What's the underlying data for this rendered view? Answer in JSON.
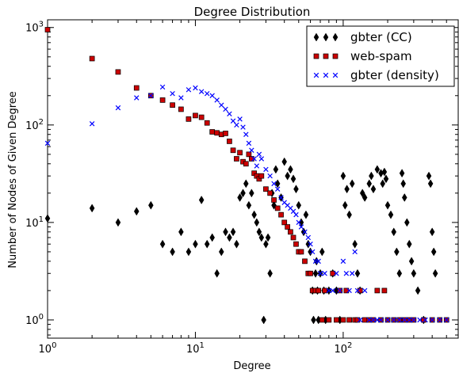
{
  "chart_data": {
    "type": "scatter",
    "title": "Degree Distribution",
    "xlabel": "Degree",
    "ylabel": "Number of Nodes of Given Degree",
    "xscale": "log",
    "yscale": "log",
    "xlim": [
      1,
      600
    ],
    "ylim": [
      0.65,
      1200
    ],
    "grid": false,
    "legend_position": "top-right",
    "x_ticks": [
      {
        "value": 1,
        "base": "10",
        "exp": "0"
      },
      {
        "value": 10,
        "base": "10",
        "exp": "1"
      },
      {
        "value": 100,
        "base": "10",
        "exp": "2"
      }
    ],
    "y_ticks": [
      {
        "value": 1,
        "base": "10",
        "exp": "0"
      },
      {
        "value": 10,
        "base": "10",
        "exp": "1"
      },
      {
        "value": 100,
        "base": "10",
        "exp": "2"
      },
      {
        "value": 1000,
        "base": "10",
        "exp": "3"
      }
    ],
    "series": [
      {
        "name": "gbter (CC)",
        "marker": "diamond",
        "color": "#000000",
        "points": [
          [
            1,
            11
          ],
          [
            2,
            14
          ],
          [
            3,
            10
          ],
          [
            4,
            13
          ],
          [
            5,
            15
          ],
          [
            6,
            6
          ],
          [
            7,
            5
          ],
          [
            8,
            8
          ],
          [
            9,
            5
          ],
          [
            10,
            6
          ],
          [
            11,
            17
          ],
          [
            12,
            6
          ],
          [
            13,
            7
          ],
          [
            14,
            3
          ],
          [
            15,
            5
          ],
          [
            16,
            8
          ],
          [
            17,
            7
          ],
          [
            18,
            8
          ],
          [
            19,
            6
          ],
          [
            20,
            18
          ],
          [
            21,
            20
          ],
          [
            22,
            25
          ],
          [
            23,
            15
          ],
          [
            24,
            20
          ],
          [
            25,
            12
          ],
          [
            26,
            10
          ],
          [
            27,
            8
          ],
          [
            28,
            7
          ],
          [
            29,
            1
          ],
          [
            30,
            6
          ],
          [
            31,
            7
          ],
          [
            32,
            3
          ],
          [
            33,
            20
          ],
          [
            34,
            15
          ],
          [
            35,
            35
          ],
          [
            36,
            25
          ],
          [
            38,
            18
          ],
          [
            40,
            42
          ],
          [
            42,
            30
          ],
          [
            44,
            35
          ],
          [
            46,
            28
          ],
          [
            48,
            22
          ],
          [
            50,
            15
          ],
          [
            52,
            10
          ],
          [
            54,
            8
          ],
          [
            56,
            12
          ],
          [
            58,
            6
          ],
          [
            60,
            5
          ],
          [
            62,
            2
          ],
          [
            63,
            1
          ],
          [
            65,
            3
          ],
          [
            66,
            4
          ],
          [
            67,
            2
          ],
          [
            68,
            1
          ],
          [
            70,
            3
          ],
          [
            72,
            5
          ],
          [
            74,
            2
          ],
          [
            76,
            1
          ],
          [
            80,
            2
          ],
          [
            85,
            3
          ],
          [
            90,
            2
          ],
          [
            95,
            1
          ],
          [
            100,
            30
          ],
          [
            103,
            15
          ],
          [
            106,
            22
          ],
          [
            110,
            12
          ],
          [
            115,
            25
          ],
          [
            120,
            6
          ],
          [
            125,
            3
          ],
          [
            130,
            2
          ],
          [
            135,
            20
          ],
          [
            140,
            18
          ],
          [
            150,
            25
          ],
          [
            155,
            30
          ],
          [
            160,
            22
          ],
          [
            170,
            35
          ],
          [
            180,
            32
          ],
          [
            185,
            25
          ],
          [
            190,
            33
          ],
          [
            195,
            28
          ],
          [
            200,
            15
          ],
          [
            210,
            12
          ],
          [
            220,
            8
          ],
          [
            230,
            5
          ],
          [
            240,
            3
          ],
          [
            250,
            32
          ],
          [
            255,
            25
          ],
          [
            260,
            18
          ],
          [
            270,
            10
          ],
          [
            280,
            6
          ],
          [
            290,
            4
          ],
          [
            300,
            3
          ],
          [
            320,
            2
          ],
          [
            350,
            1
          ],
          [
            380,
            30
          ],
          [
            390,
            25
          ],
          [
            400,
            8
          ],
          [
            410,
            5
          ],
          [
            420,
            3
          ]
        ]
      },
      {
        "name": "web-spam",
        "marker": "square",
        "color": "#cc0000",
        "points": [
          [
            1,
            950
          ],
          [
            2,
            480
          ],
          [
            3,
            350
          ],
          [
            4,
            240
          ],
          [
            5,
            200
          ],
          [
            6,
            180
          ],
          [
            7,
            160
          ],
          [
            8,
            145
          ],
          [
            9,
            115
          ],
          [
            10,
            125
          ],
          [
            11,
            120
          ],
          [
            12,
            105
          ],
          [
            13,
            85
          ],
          [
            14,
            83
          ],
          [
            15,
            80
          ],
          [
            16,
            82
          ],
          [
            17,
            68
          ],
          [
            18,
            55
          ],
          [
            19,
            45
          ],
          [
            20,
            52
          ],
          [
            21,
            42
          ],
          [
            22,
            40
          ],
          [
            23,
            50
          ],
          [
            24,
            45
          ],
          [
            25,
            32
          ],
          [
            26,
            30
          ],
          [
            27,
            28
          ],
          [
            28,
            30
          ],
          [
            30,
            22
          ],
          [
            32,
            20
          ],
          [
            34,
            17
          ],
          [
            36,
            14
          ],
          [
            38,
            12
          ],
          [
            40,
            10
          ],
          [
            42,
            9
          ],
          [
            44,
            8
          ],
          [
            46,
            7
          ],
          [
            48,
            6
          ],
          [
            50,
            5
          ],
          [
            52,
            5
          ],
          [
            55,
            4
          ],
          [
            58,
            3
          ],
          [
            60,
            3
          ],
          [
            62,
            2
          ],
          [
            65,
            2
          ],
          [
            68,
            2
          ],
          [
            72,
            1
          ],
          [
            75,
            2
          ],
          [
            80,
            1
          ],
          [
            85,
            3
          ],
          [
            90,
            1
          ],
          [
            95,
            2
          ],
          [
            100,
            1
          ],
          [
            105,
            2
          ],
          [
            110,
            1
          ],
          [
            120,
            1
          ],
          [
            125,
            1
          ],
          [
            130,
            2
          ],
          [
            140,
            1
          ],
          [
            150,
            1
          ],
          [
            160,
            1
          ],
          [
            170,
            2
          ],
          [
            180,
            1
          ],
          [
            190,
            2
          ],
          [
            200,
            1
          ],
          [
            220,
            1
          ],
          [
            240,
            1
          ],
          [
            260,
            1
          ],
          [
            280,
            1
          ],
          [
            300,
            1
          ],
          [
            350,
            1
          ],
          [
            400,
            1
          ],
          [
            450,
            1
          ],
          [
            500,
            1
          ]
        ]
      },
      {
        "name": "gbter (density)",
        "marker": "x",
        "color": "#0000ff",
        "points": [
          [
            1,
            65
          ],
          [
            2,
            103
          ],
          [
            3,
            150
          ],
          [
            4,
            190
          ],
          [
            5,
            200
          ],
          [
            6,
            245
          ],
          [
            7,
            210
          ],
          [
            8,
            190
          ],
          [
            9,
            230
          ],
          [
            10,
            240
          ],
          [
            11,
            220
          ],
          [
            12,
            210
          ],
          [
            13,
            200
          ],
          [
            14,
            180
          ],
          [
            15,
            160
          ],
          [
            16,
            145
          ],
          [
            17,
            130
          ],
          [
            18,
            110
          ],
          [
            19,
            100
          ],
          [
            20,
            115
          ],
          [
            21,
            95
          ],
          [
            22,
            80
          ],
          [
            23,
            65
          ],
          [
            24,
            55
          ],
          [
            25,
            45
          ],
          [
            26,
            38
          ],
          [
            27,
            50
          ],
          [
            28,
            45
          ],
          [
            30,
            35
          ],
          [
            32,
            30
          ],
          [
            34,
            25
          ],
          [
            36,
            22
          ],
          [
            38,
            18
          ],
          [
            40,
            16
          ],
          [
            42,
            15
          ],
          [
            44,
            14
          ],
          [
            46,
            13
          ],
          [
            48,
            12
          ],
          [
            50,
            10
          ],
          [
            52,
            9
          ],
          [
            55,
            8
          ],
          [
            58,
            7
          ],
          [
            60,
            6
          ],
          [
            62,
            5
          ],
          [
            65,
            4
          ],
          [
            68,
            4
          ],
          [
            70,
            3
          ],
          [
            75,
            3
          ],
          [
            80,
            2
          ],
          [
            85,
            2
          ],
          [
            90,
            3
          ],
          [
            95,
            2
          ],
          [
            100,
            4
          ],
          [
            105,
            3
          ],
          [
            110,
            2
          ],
          [
            115,
            3
          ],
          [
            120,
            5
          ],
          [
            125,
            2
          ],
          [
            130,
            1
          ],
          [
            140,
            2
          ],
          [
            150,
            1
          ],
          [
            160,
            1
          ],
          [
            170,
            1
          ],
          [
            180,
            1
          ],
          [
            200,
            1
          ],
          [
            220,
            1
          ],
          [
            240,
            1
          ],
          [
            260,
            1
          ],
          [
            280,
            1
          ],
          [
            300,
            1
          ],
          [
            330,
            1
          ],
          [
            360,
            1
          ],
          [
            400,
            1
          ],
          [
            450,
            1
          ],
          [
            500,
            1
          ]
        ]
      }
    ]
  }
}
